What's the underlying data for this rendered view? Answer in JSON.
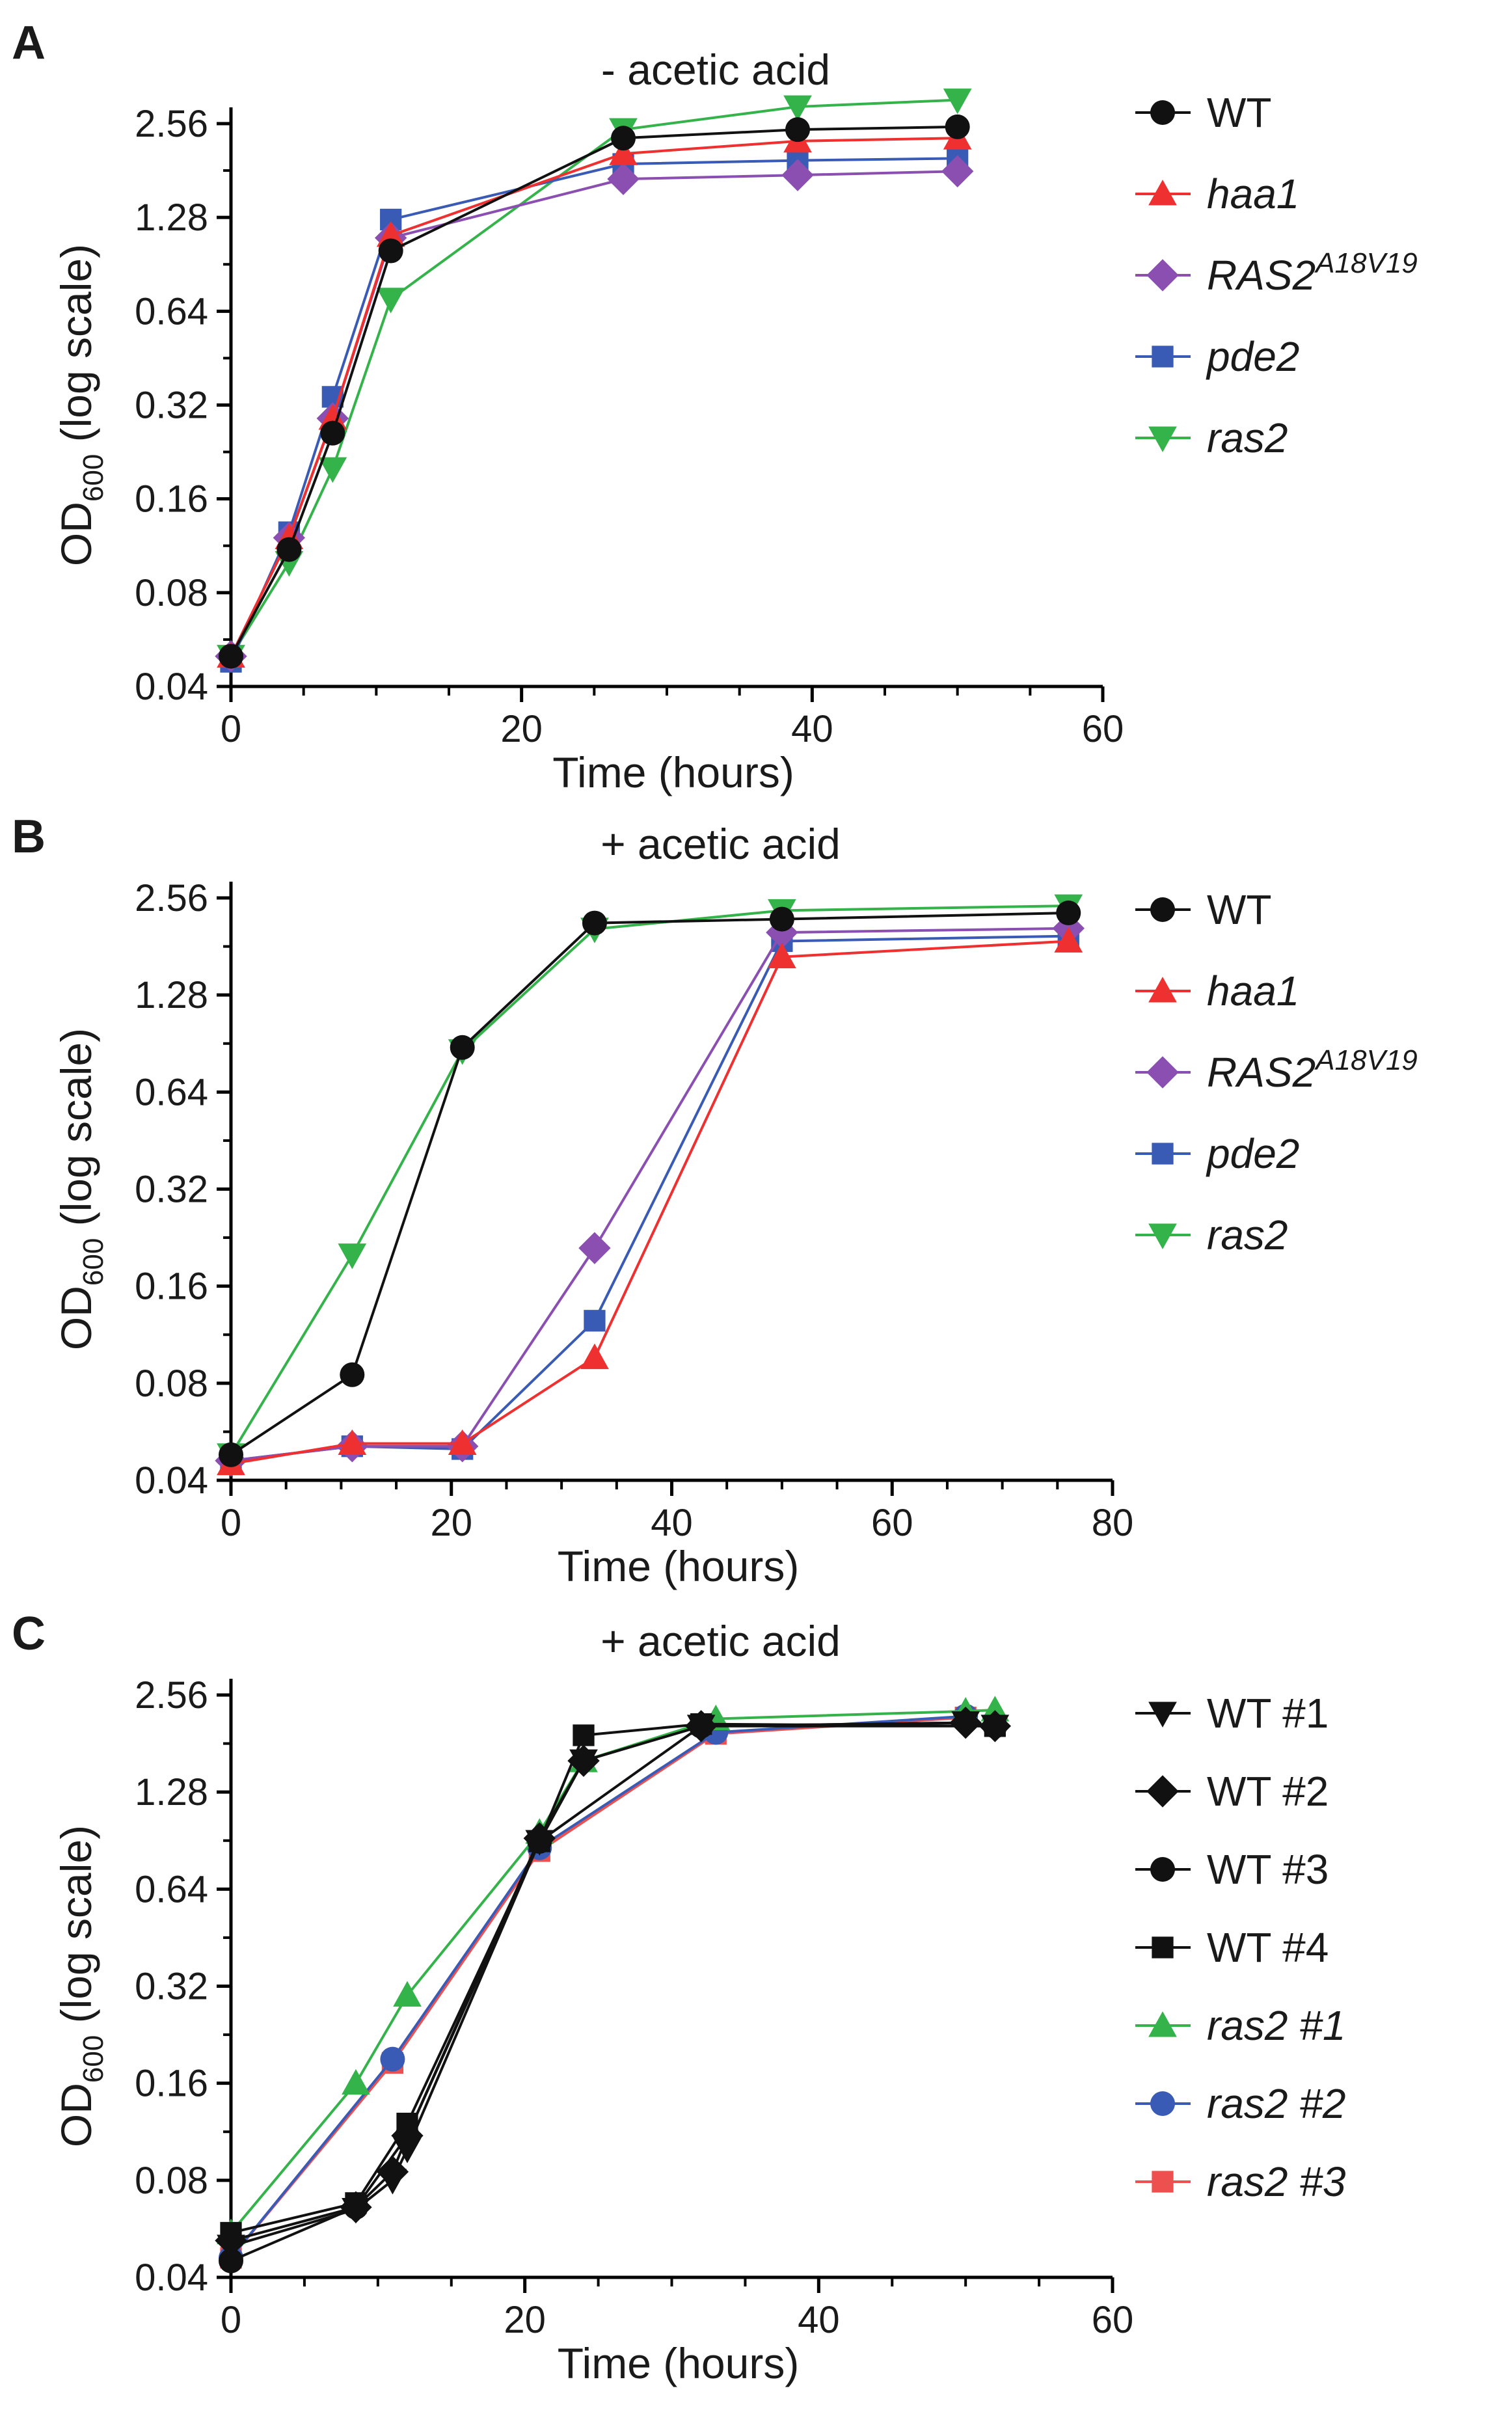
{
  "chart_data": [
    {
      "panel": "A",
      "type": "line",
      "title": "- acetic acid",
      "xlabel": "Time (hours)",
      "ylabel_main": "OD",
      "ylabel_sub": "600",
      "ylabel_rest": " (log scale)",
      "xlim": [
        0,
        60
      ],
      "ylim": [
        0.04,
        2.56
      ],
      "yscale": "log2",
      "xticks": [
        0,
        20,
        40,
        60
      ],
      "yticks": [
        0.04,
        0.08,
        0.16,
        0.32,
        0.64,
        1.28,
        2.56
      ],
      "legend_position": "right",
      "series": [
        {
          "name": "WT",
          "italic": false,
          "sup": "",
          "color": "#111111",
          "marker": "circle",
          "x": [
            0,
            4,
            7,
            11,
            27,
            39,
            50
          ],
          "y": [
            0.05,
            0.11,
            0.26,
            1.0,
            2.3,
            2.45,
            2.5
          ]
        },
        {
          "name": "haa1",
          "italic": true,
          "sup": "",
          "color": "#ee3030",
          "marker": "triangle-up",
          "x": [
            0,
            4,
            7,
            11,
            27,
            39,
            50
          ],
          "y": [
            0.05,
            0.12,
            0.29,
            1.12,
            2.05,
            2.25,
            2.3
          ]
        },
        {
          "name": "RAS2",
          "italic": true,
          "sup": "A18V19",
          "color": "#8a4fb0",
          "marker": "diamond",
          "x": [
            0,
            4,
            7,
            11,
            27,
            39,
            50
          ],
          "y": [
            0.05,
            0.12,
            0.29,
            1.1,
            1.7,
            1.75,
            1.8
          ]
        },
        {
          "name": "pde2",
          "italic": true,
          "sup": "",
          "color": "#3a5bb5",
          "marker": "square",
          "x": [
            0,
            4,
            7,
            11,
            27,
            39,
            50
          ],
          "y": [
            0.048,
            0.125,
            0.34,
            1.26,
            1.9,
            1.95,
            1.98
          ]
        },
        {
          "name": "ras2",
          "italic": true,
          "sup": "",
          "color": "#33b34a",
          "marker": "triangle-down",
          "x": [
            0,
            4,
            7,
            11,
            27,
            39,
            50
          ],
          "y": [
            0.05,
            0.1,
            0.2,
            0.7,
            2.45,
            2.9,
            3.05
          ]
        }
      ]
    },
    {
      "panel": "B",
      "type": "line",
      "title": "+ acetic acid",
      "xlabel": "Time (hours)",
      "ylabel_main": "OD",
      "ylabel_sub": "600",
      "ylabel_rest": " (log scale)",
      "xlim": [
        0,
        80
      ],
      "ylim": [
        0.04,
        2.56
      ],
      "yscale": "log2",
      "xticks": [
        0,
        20,
        40,
        60,
        80
      ],
      "yticks": [
        0.04,
        0.08,
        0.16,
        0.32,
        0.64,
        1.28,
        2.56
      ],
      "legend_position": "right",
      "series": [
        {
          "name": "WT",
          "italic": false,
          "sup": "",
          "color": "#111111",
          "marker": "circle",
          "x": [
            0,
            11,
            21,
            33,
            50,
            76
          ],
          "y": [
            0.048,
            0.085,
            0.88,
            2.14,
            2.2,
            2.3
          ]
        },
        {
          "name": "haa1",
          "italic": true,
          "sup": "",
          "color": "#ee3030",
          "marker": "triangle-up",
          "x": [
            0,
            11,
            21,
            33,
            50,
            76
          ],
          "y": [
            0.045,
            0.052,
            0.052,
            0.096,
            1.68,
            1.88
          ]
        },
        {
          "name": "RAS2",
          "italic": true,
          "sup": "A18V19",
          "color": "#8a4fb0",
          "marker": "diamond",
          "x": [
            0,
            11,
            21,
            33,
            50,
            76
          ],
          "y": [
            0.046,
            0.051,
            0.051,
            0.21,
            2.0,
            2.06
          ]
        },
        {
          "name": "pde2",
          "italic": true,
          "sup": "",
          "color": "#3a5bb5",
          "marker": "square",
          "x": [
            0,
            11,
            21,
            33,
            50,
            76
          ],
          "y": [
            0.046,
            0.051,
            0.05,
            0.125,
            1.88,
            1.95
          ]
        },
        {
          "name": "ras2",
          "italic": true,
          "sup": "",
          "color": "#33b34a",
          "marker": "triangle-down",
          "x": [
            0,
            11,
            21,
            33,
            50,
            76
          ],
          "y": [
            0.048,
            0.2,
            0.86,
            2.05,
            2.34,
            2.42
          ]
        }
      ]
    },
    {
      "panel": "C",
      "type": "line",
      "title": "+ acetic acid",
      "xlabel": "Time (hours)",
      "ylabel_main": "OD",
      "ylabel_sub": "600",
      "ylabel_rest": " (log scale)",
      "xlim": [
        0,
        60
      ],
      "ylim": [
        0.04,
        2.56
      ],
      "yscale": "log2",
      "xticks": [
        0,
        20,
        40,
        60
      ],
      "yticks": [
        0.04,
        0.08,
        0.16,
        0.32,
        0.64,
        1.28,
        2.56
      ],
      "legend_position": "right",
      "series": [
        {
          "name": "WT #1",
          "italic": false,
          "color": "#111111",
          "marker": "triangle-down",
          "x": [
            0,
            8.5,
            11,
            12,
            21,
            24,
            32,
            50,
            52
          ],
          "y": [
            0.05,
            0.065,
            0.08,
            0.1,
            0.9,
            1.6,
            2.05,
            2.1,
            2.05
          ]
        },
        {
          "name": "WT #2",
          "italic": false,
          "color": "#111111",
          "marker": "diamond",
          "x": [
            0,
            8.5,
            11,
            12,
            21,
            24,
            32,
            50,
            52
          ],
          "y": [
            0.052,
            0.066,
            0.085,
            0.11,
            0.92,
            1.6,
            2.05,
            2.1,
            2.05
          ]
        },
        {
          "name": "WT #3",
          "italic": false,
          "color": "#111111",
          "marker": "circle",
          "x": [
            0,
            8.5,
            12,
            21,
            32,
            52
          ],
          "y": [
            0.045,
            0.066,
            0.11,
            0.9,
            2.05,
            2.05
          ]
        },
        {
          "name": "WT #4",
          "italic": false,
          "color": "#111111",
          "marker": "square",
          "x": [
            0,
            8.5,
            12,
            21,
            24,
            32,
            52
          ],
          "y": [
            0.055,
            0.068,
            0.12,
            0.9,
            1.92,
            2.08,
            2.05
          ]
        },
        {
          "name": "ras2 #1",
          "italic": true,
          "color": "#33b34a",
          "marker": "triangle-up",
          "x": [
            0,
            8.5,
            12,
            21,
            24,
            33,
            50,
            52
          ],
          "y": [
            0.055,
            0.16,
            0.3,
            0.96,
            1.6,
            2.16,
            2.28,
            2.3
          ]
        },
        {
          "name": "ras2 #2",
          "italic": true,
          "color": "#3a5bb5",
          "marker": "circle",
          "x": [
            0,
            11,
            21,
            33,
            50
          ],
          "y": [
            0.046,
            0.19,
            0.86,
            1.96,
            2.2
          ]
        },
        {
          "name": "ras2 #3",
          "italic": true,
          "color": "#ee5050",
          "marker": "square",
          "x": [
            0,
            11,
            21,
            33,
            50
          ],
          "y": [
            0.046,
            0.185,
            0.84,
            1.94,
            2.18
          ]
        }
      ]
    }
  ]
}
